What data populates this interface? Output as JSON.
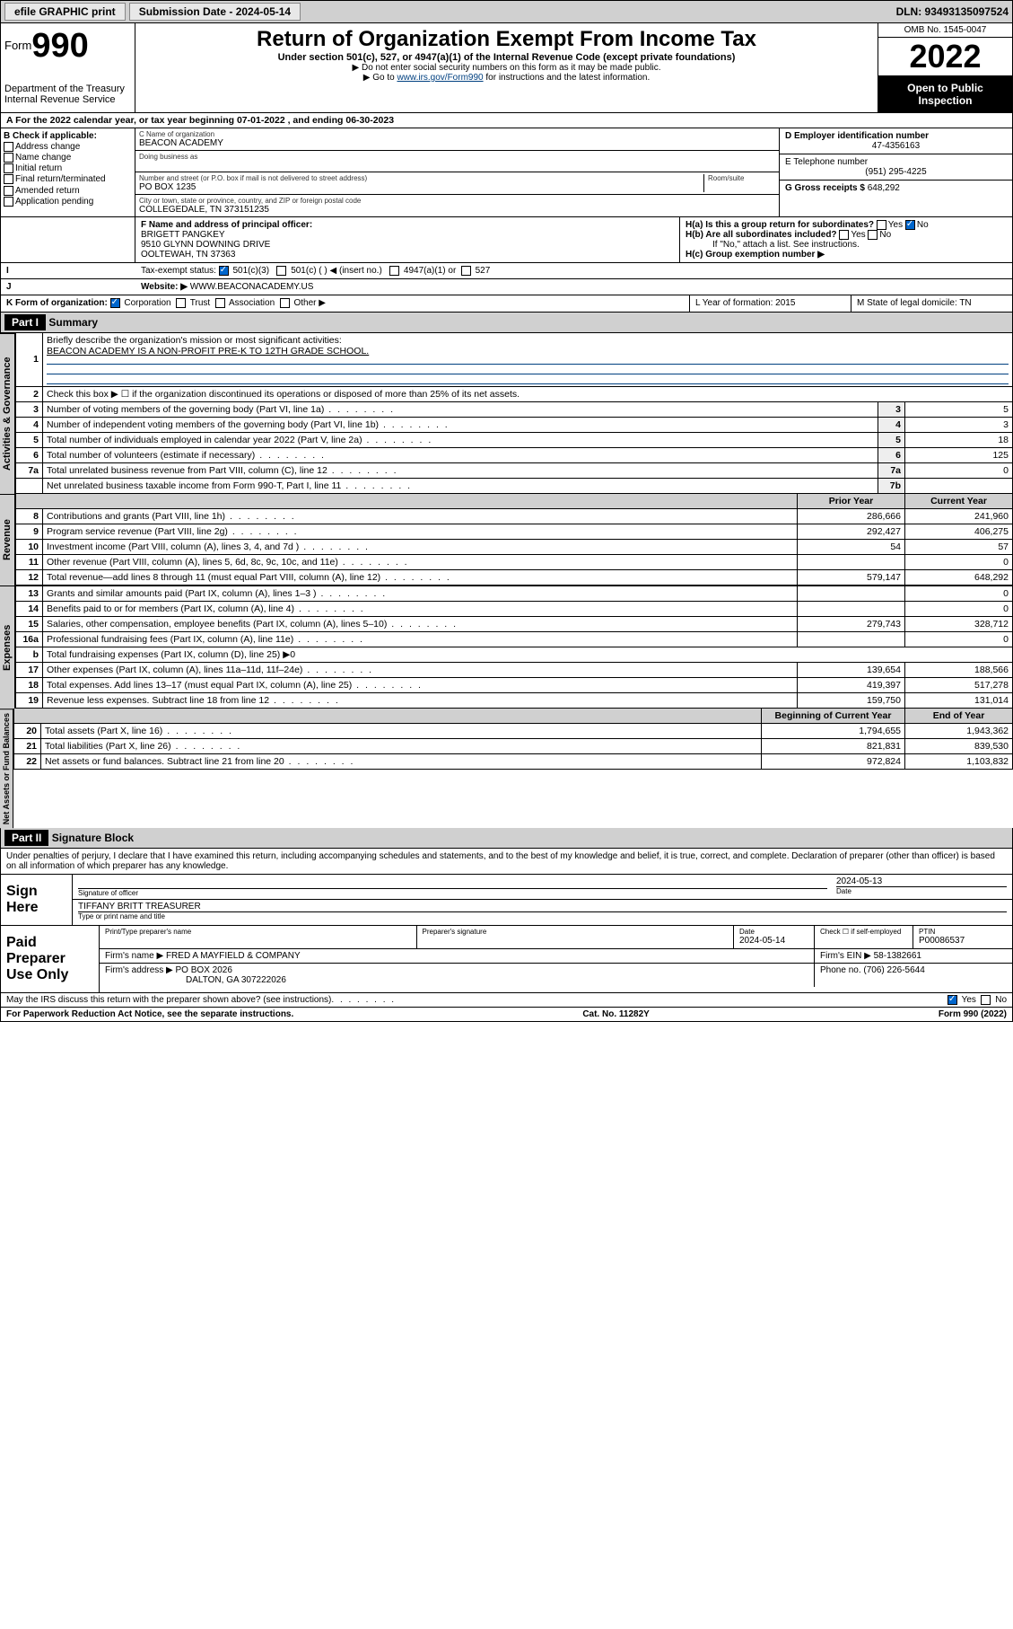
{
  "topbar": {
    "efile": "efile GRAPHIC print",
    "submission": "Submission Date - 2024-05-14",
    "dln": "DLN: 93493135097524"
  },
  "header": {
    "form_label": "Form",
    "form_num": "990",
    "dept": "Department of the Treasury",
    "irs": "Internal Revenue Service",
    "title": "Return of Organization Exempt From Income Tax",
    "sub": "Under section 501(c), 527, or 4947(a)(1) of the Internal Revenue Code (except private foundations)",
    "note1": "▶ Do not enter social security numbers on this form as it may be made public.",
    "note2_pre": "▶ Go to ",
    "note2_link": "www.irs.gov/Form990",
    "note2_post": " for instructions and the latest information.",
    "omb": "OMB No. 1545-0047",
    "year": "2022",
    "open": "Open to Public Inspection"
  },
  "a": {
    "line": "For the 2022 calendar year, or tax year beginning 07-01-2022   , and ending 06-30-2023"
  },
  "b": {
    "hdr": "B Check if applicable:",
    "opts": [
      "Address change",
      "Name change",
      "Initial return",
      "Final return/terminated",
      "Amended return",
      "Application pending"
    ]
  },
  "c": {
    "name_lbl": "C Name of organization",
    "name": "BEACON ACADEMY",
    "dba_lbl": "Doing business as",
    "dba": "",
    "addr_lbl": "Number and street (or P.O. box if mail is not delivered to street address)",
    "room_lbl": "Room/suite",
    "addr": "PO BOX 1235",
    "city_lbl": "City or town, state or province, country, and ZIP or foreign postal code",
    "city": "COLLEGEDALE, TN  373151235"
  },
  "d": {
    "lbl": "D Employer identification number",
    "val": "47-4356163"
  },
  "e": {
    "lbl": "E Telephone number",
    "val": "(951) 295-4225"
  },
  "g": {
    "lbl": "G Gross receipts $",
    "val": "648,292"
  },
  "f": {
    "lbl": "F  Name and address of principal officer:",
    "name": "BRIGETT PANGKEY",
    "addr1": "9510 GLYNN DOWNING DRIVE",
    "addr2": "OOLTEWAH, TN  37363"
  },
  "h": {
    "a_lbl": "H(a)  Is this a group return for subordinates?",
    "b_lbl": "H(b)  Are all subordinates included?",
    "b_note": "If \"No,\" attach a list. See instructions.",
    "c_lbl": "H(c)  Group exemption number ▶"
  },
  "i": {
    "lbl": "Tax-exempt status:",
    "o1": "501(c)(3)",
    "o2": "501(c) (  ) ◀ (insert no.)",
    "o3": "4947(a)(1) or",
    "o4": "527"
  },
  "j": {
    "lbl": "Website: ▶",
    "val": "WWW.BEACONACADEMY.US"
  },
  "k": {
    "lbl": "K Form of organization:",
    "corp": "Corporation",
    "trust": "Trust",
    "assoc": "Association",
    "other": "Other ▶"
  },
  "l": {
    "lbl": "L Year of formation: 2015"
  },
  "m": {
    "lbl": "M State of legal domicile: TN"
  },
  "part1": {
    "hdr": "Part I",
    "title": "Summary",
    "q1": "Briefly describe the organization's mission or most significant activities:",
    "q1_val": "BEACON ACADEMY IS A NON-PROFIT PRE-K TO 12TH GRADE SCHOOL.",
    "q2": "Check this box ▶ ☐  if the organization discontinued its operations or disposed of more than 25% of its net assets.",
    "rows_gov": [
      {
        "n": "3",
        "t": "Number of voting members of the governing body (Part VI, line 1a)",
        "box": "3",
        "v": "5"
      },
      {
        "n": "4",
        "t": "Number of independent voting members of the governing body (Part VI, line 1b)",
        "box": "4",
        "v": "3"
      },
      {
        "n": "5",
        "t": "Total number of individuals employed in calendar year 2022 (Part V, line 2a)",
        "box": "5",
        "v": "18"
      },
      {
        "n": "6",
        "t": "Total number of volunteers (estimate if necessary)",
        "box": "6",
        "v": "125"
      },
      {
        "n": "7a",
        "t": "Total unrelated business revenue from Part VIII, column (C), line 12",
        "box": "7a",
        "v": "0"
      },
      {
        "n": "",
        "t": "Net unrelated business taxable income from Form 990-T, Part I, line 11",
        "box": "7b",
        "v": ""
      }
    ],
    "hdr_prior": "Prior Year",
    "hdr_curr": "Current Year",
    "rows_rev": [
      {
        "n": "8",
        "t": "Contributions and grants (Part VIII, line 1h)",
        "p": "286,666",
        "c": "241,960"
      },
      {
        "n": "9",
        "t": "Program service revenue (Part VIII, line 2g)",
        "p": "292,427",
        "c": "406,275"
      },
      {
        "n": "10",
        "t": "Investment income (Part VIII, column (A), lines 3, 4, and 7d )",
        "p": "54",
        "c": "57"
      },
      {
        "n": "11",
        "t": "Other revenue (Part VIII, column (A), lines 5, 6d, 8c, 9c, 10c, and 11e)",
        "p": "",
        "c": "0"
      },
      {
        "n": "12",
        "t": "Total revenue—add lines 8 through 11 (must equal Part VIII, column (A), line 12)",
        "p": "579,147",
        "c": "648,292"
      }
    ],
    "rows_exp": [
      {
        "n": "13",
        "t": "Grants and similar amounts paid (Part IX, column (A), lines 1–3 )",
        "p": "",
        "c": "0"
      },
      {
        "n": "14",
        "t": "Benefits paid to or for members (Part IX, column (A), line 4)",
        "p": "",
        "c": "0"
      },
      {
        "n": "15",
        "t": "Salaries, other compensation, employee benefits (Part IX, column (A), lines 5–10)",
        "p": "279,743",
        "c": "328,712"
      },
      {
        "n": "16a",
        "t": "Professional fundraising fees (Part IX, column (A), line 11e)",
        "p": "",
        "c": "0"
      },
      {
        "n": "b",
        "t": "Total fundraising expenses (Part IX, column (D), line 25) ▶0",
        "p": "—",
        "c": "—"
      },
      {
        "n": "17",
        "t": "Other expenses (Part IX, column (A), lines 11a–11d, 11f–24e)",
        "p": "139,654",
        "c": "188,566"
      },
      {
        "n": "18",
        "t": "Total expenses. Add lines 13–17 (must equal Part IX, column (A), line 25)",
        "p": "419,397",
        "c": "517,278"
      },
      {
        "n": "19",
        "t": "Revenue less expenses. Subtract line 18 from line 12",
        "p": "159,750",
        "c": "131,014"
      }
    ],
    "hdr_beg": "Beginning of Current Year",
    "hdr_end": "End of Year",
    "rows_net": [
      {
        "n": "20",
        "t": "Total assets (Part X, line 16)",
        "p": "1,794,655",
        "c": "1,943,362"
      },
      {
        "n": "21",
        "t": "Total liabilities (Part X, line 26)",
        "p": "821,831",
        "c": "839,530"
      },
      {
        "n": "22",
        "t": "Net assets or fund balances. Subtract line 21 from line 20",
        "p": "972,824",
        "c": "1,103,832"
      }
    ],
    "vtab_gov": "Activities & Governance",
    "vtab_rev": "Revenue",
    "vtab_exp": "Expenses",
    "vtab_net": "Net Assets or Fund Balances"
  },
  "part2": {
    "hdr": "Part II",
    "title": "Signature Block",
    "decl": "Under penalties of perjury, I declare that I have examined this return, including accompanying schedules and statements, and to the best of my knowledge and belief, it is true, correct, and complete. Declaration of preparer (other than officer) is based on all information of which preparer has any knowledge.",
    "sign_here": "Sign Here",
    "sig_officer": "Signature of officer",
    "sig_date": "2024-05-13",
    "sig_date_lbl": "Date",
    "sig_name": "TIFFANY BRITT TREASURER",
    "sig_name_lbl": "Type or print name and title",
    "paid_hdr": "Paid Preparer Use Only",
    "prep_name_lbl": "Print/Type preparer's name",
    "prep_sig_lbl": "Preparer's signature",
    "prep_date_lbl": "Date",
    "prep_date": "2024-05-14",
    "prep_check_lbl": "Check ☐ if self-employed",
    "ptin_lbl": "PTIN",
    "ptin": "P00086537",
    "firm_name_lbl": "Firm's name    ▶",
    "firm_name": "FRED A MAYFIELD & COMPANY",
    "firm_ein_lbl": "Firm's EIN ▶",
    "firm_ein": "58-1382661",
    "firm_addr_lbl": "Firm's address ▶",
    "firm_addr1": "PO BOX 2026",
    "firm_addr2": "DALTON, GA  307222026",
    "firm_phone_lbl": "Phone no.",
    "firm_phone": "(706) 226-5644",
    "may_discuss": "May the IRS discuss this return with the preparer shown above? (see instructions)"
  },
  "footer": {
    "pra": "For Paperwork Reduction Act Notice, see the separate instructions.",
    "cat": "Cat. No. 11282Y",
    "form": "Form 990 (2022)"
  }
}
